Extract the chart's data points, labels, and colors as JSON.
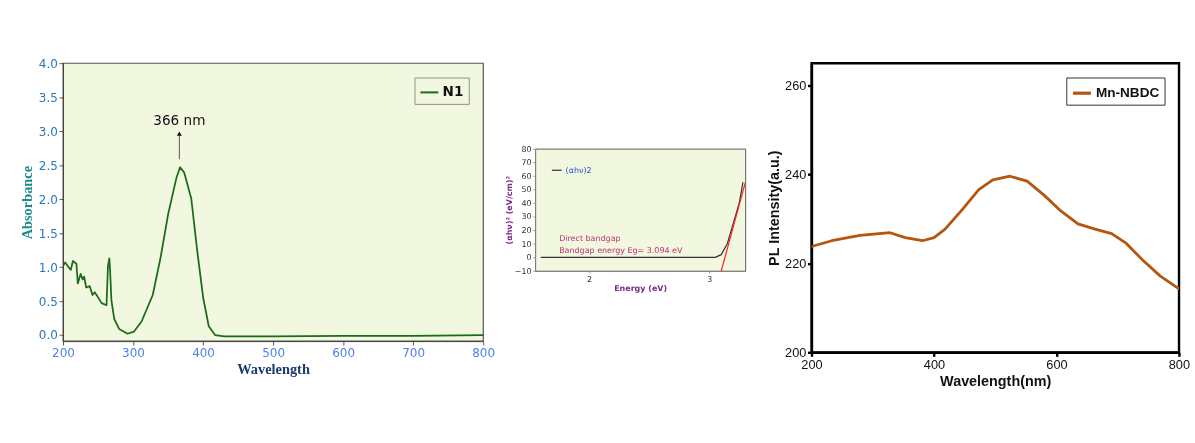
{
  "chart_data": [
    {
      "type": "line",
      "xlabel": "Wavelength",
      "ylabel": "Absorbance",
      "xlim": [
        200,
        800
      ],
      "ylim": [
        -0.09,
        4
      ],
      "xticks": [
        200,
        300,
        400,
        500,
        600,
        700,
        800
      ],
      "yticks": [
        {
          "value": 0,
          "label": "0.0"
        },
        0.5,
        {
          "value": 1,
          "label": "1.0"
        },
        1.5,
        {
          "value": 2,
          "label": "2.0"
        },
        2.5,
        {
          "value": 3,
          "label": "3.0"
        },
        3.5,
        {
          "value": 4,
          "label": "4.0"
        }
      ],
      "legend": "top right",
      "series": [
        {
          "name": "N1",
          "color": "#1a6b1a",
          "x": [
            200,
            203,
            207,
            211,
            214,
            219,
            221,
            225,
            228,
            230,
            233,
            238,
            242,
            245,
            249,
            255,
            262,
            264,
            266,
            267,
            269,
            273,
            280,
            292,
            301,
            312,
            328,
            339,
            350,
            362,
            367,
            373,
            383,
            392,
            400,
            408,
            417,
            430,
            500,
            600,
            700,
            800
          ],
          "values": [
            1.02,
            1.07,
            1.01,
            0.96,
            1.09,
            1.05,
            0.76,
            0.9,
            0.82,
            0.86,
            0.7,
            0.72,
            0.59,
            0.63,
            0.57,
            0.47,
            0.44,
            1.01,
            1.13,
            0.97,
            0.51,
            0.24,
            0.09,
            0.02,
            0.05,
            0.2,
            0.59,
            1.13,
            1.78,
            2.32,
            2.47,
            2.39,
            2.01,
            1.2,
            0.55,
            0.13,
            0.0,
            -0.02,
            -0.02,
            -0.01,
            -0.01,
            0.0
          ]
        }
      ],
      "annotations": [
        {
          "text": "366 nm",
          "x": 366,
          "y": 2.47
        }
      ]
    },
    {
      "type": "line",
      "xlabel": "Energy (eV)",
      "ylabel": "(αhν)² (eV/cm)²",
      "xlim": [
        1.55,
        3.3
      ],
      "ylim": [
        -10,
        80
      ],
      "xticks": [
        2,
        3
      ],
      "yticks": [
        -10,
        0,
        10,
        20,
        30,
        40,
        50,
        60,
        70,
        80
      ],
      "legend": "top left",
      "series": [
        {
          "name": "(αhν)2",
          "color": "#333333",
          "x": [
            1.6,
            2.0,
            2.5,
            3.0,
            3.05,
            3.1,
            3.15,
            3.2,
            3.25,
            3.28
          ],
          "values": [
            0,
            0,
            0,
            0,
            0,
            2,
            10,
            25,
            40,
            55
          ]
        },
        {
          "type": "line",
          "color": "#ff2020",
          "x": [
            3.1,
            3.3
          ],
          "values": [
            -10,
            55
          ]
        }
      ],
      "annotations": [
        "Direct bandgap",
        "Bandgap energy Eg= 3.094 eV"
      ]
    },
    {
      "type": "line",
      "xlabel": "Wavelength(nm)",
      "ylabel": "PL Intensity(a.u.)",
      "xlim": [
        200,
        800
      ],
      "ylim": [
        200,
        265
      ],
      "xticks": [
        200,
        400,
        600,
        800
      ],
      "yticks": [
        200,
        220,
        240,
        260
      ],
      "legend": "top right",
      "series": [
        {
          "name": "Mn-NBDC",
          "color": "#b5560f",
          "x": [
            200,
            233,
            279,
            328,
            353,
            381,
            400,
            418,
            446,
            473,
            496,
            524,
            552,
            580,
            607,
            635,
            663,
            690,
            714,
            741,
            769,
            800
          ],
          "values": [
            223.8,
            225.1,
            226.3,
            226.9,
            225.8,
            225.1,
            225.8,
            227.7,
            232.1,
            236.6,
            238.8,
            239.6,
            238.5,
            235.3,
            231.8,
            228.9,
            227.7,
            226.7,
            224.5,
            220.7,
            217.2,
            214.3
          ]
        }
      ]
    }
  ]
}
